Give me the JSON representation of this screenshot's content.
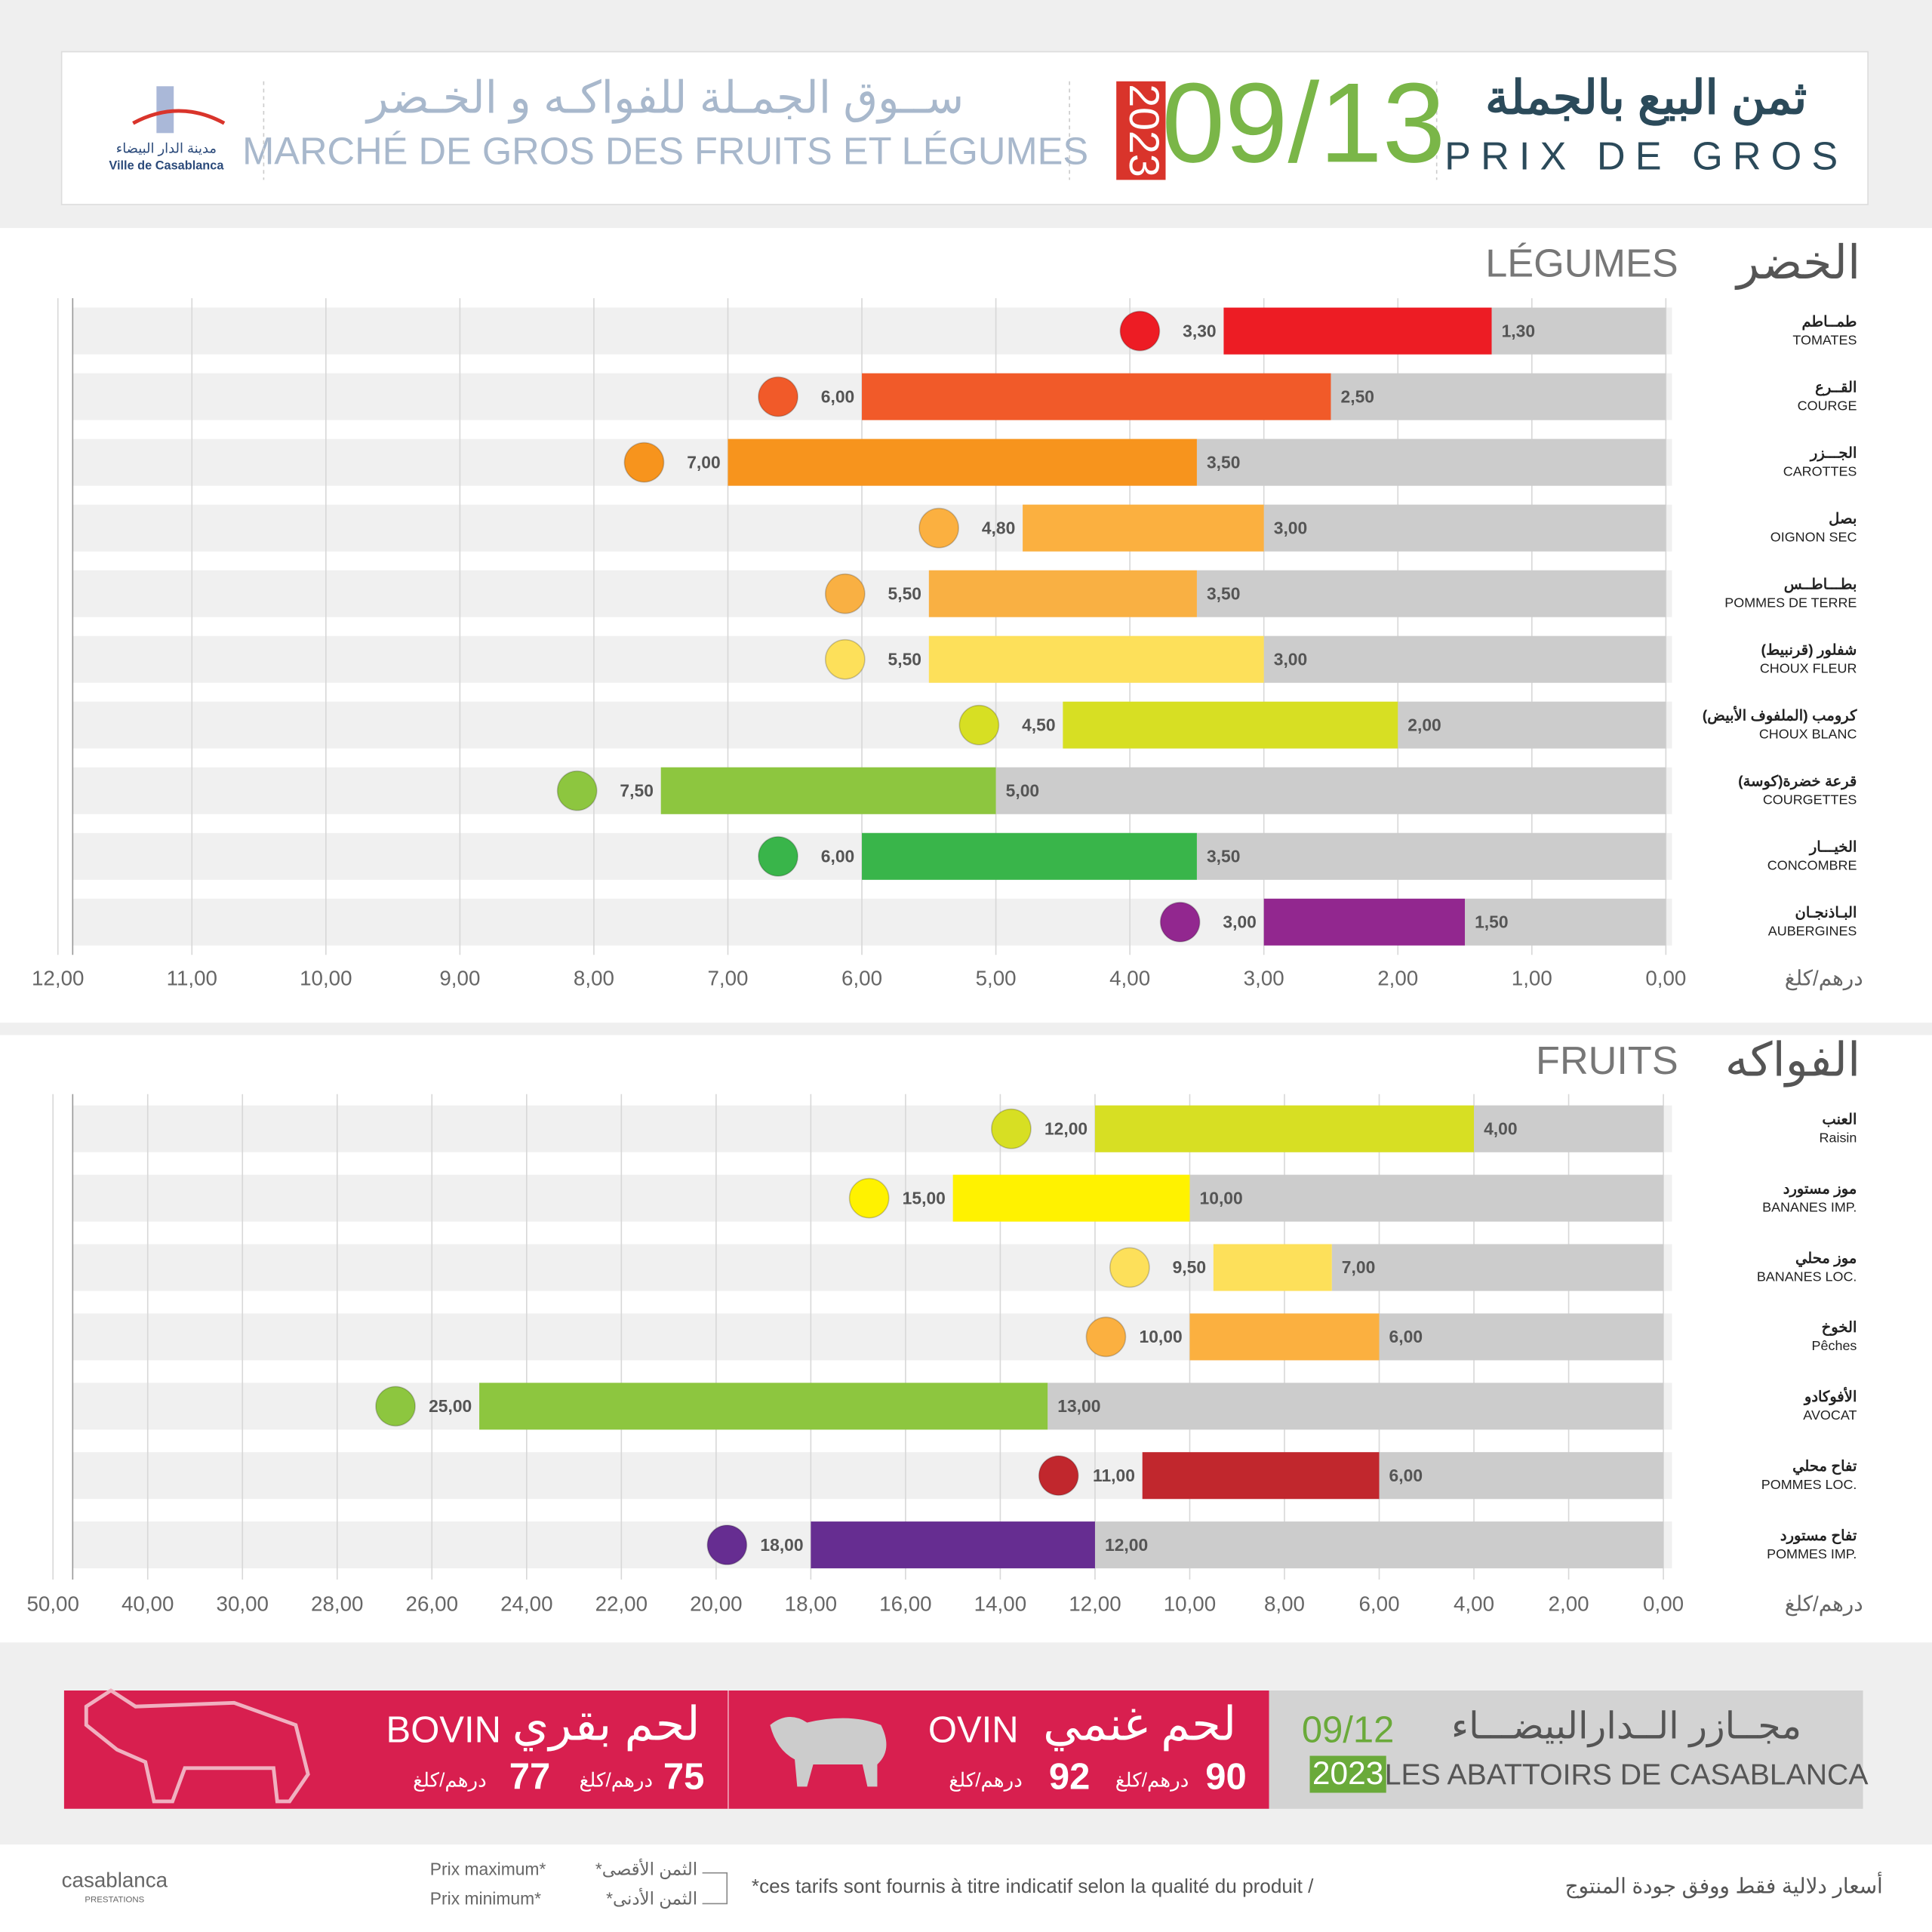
{
  "header": {
    "title_ar": "ثمن البيع بالجملة",
    "title_fr": "PRIX DE GROS",
    "date": "09/13",
    "year": "2023",
    "market_ar": "ســوق الجمـلة للفواكـه و الخـضر",
    "market_fr": "MARCHÉ DE GROS DES FRUITS ET LÉGUMES",
    "city_ar": "مدينة الدار البيضاء",
    "city_fr": "Ville de Casablanca"
  },
  "chart_data": [
    {
      "type": "range-bar",
      "title": "LÉGUMES",
      "title_ar": "الخضر",
      "unit": "درهم/كلغ",
      "xaxis_reversed": true,
      "categories": [
        "TOMATES",
        "COURGE",
        "CAROTTES",
        "OIGNON SEC",
        "POMMES DE TERRE",
        "CHOUX FLEUR",
        "CHOUX BLANC",
        "COURGETTES",
        "CONCOMBRE",
        "AUBERGINES"
      ],
      "categories_ar": [
        "طمــاطم",
        "القــرع",
        "الجـــزر",
        "بصل",
        "بطـــاطــس",
        "شفلور (قرنبيط)",
        "كرومب (الملفوف الأبيض)",
        "قرعة خضرة(كوسة)",
        "الخيـــار",
        "البـاذنجـان"
      ],
      "series": [
        {
          "values": [
            3.3,
            6,
            7,
            4.8,
            5.5,
            5.5,
            4.5,
            7.5,
            6,
            3
          ],
          "value_labels": [
            "3,30",
            "6,00",
            "7,00",
            "4,80",
            "5,50",
            "5,50",
            "4,50",
            "7,50",
            "6,00",
            "3,00"
          ],
          "colors": [
            "#ed1c24",
            "#f15a29",
            "#f7941d",
            "#fbb040",
            "#f9b043",
            "#fde05a",
            "#d7df23",
            "#8dc63f",
            "#39b54a",
            "#92278f"
          ]
        },
        {
          "values": [
            1.3,
            2.5,
            3.5,
            3,
            3.5,
            3,
            2,
            5,
            3.5,
            1.5
          ],
          "value_labels": [
            "1,30",
            "2,50",
            "3,50",
            "3,00",
            "3,50",
            "3,00",
            "2,00",
            "5,00",
            "3,50",
            "1,50"
          ],
          "color": "#cccccc"
        }
      ],
      "xlim": [
        0,
        12
      ],
      "xticks": [
        {
          "value": 0,
          "label": "0,00"
        },
        {
          "value": 1,
          "label": "1,00"
        },
        {
          "value": 2,
          "label": "2,00"
        },
        {
          "value": 3,
          "label": "3,00"
        },
        {
          "value": 4,
          "label": "4,00"
        },
        {
          "value": 5,
          "label": "5,00"
        },
        {
          "value": 6,
          "label": "6,00"
        },
        {
          "value": 7,
          "label": "7,00"
        },
        {
          "value": 8,
          "label": "8,00"
        },
        {
          "value": 9,
          "label": "9,00"
        },
        {
          "value": 10,
          "label": "10,00"
        },
        {
          "value": 11,
          "label": "11,00"
        },
        {
          "value": 12,
          "label": "12,00"
        }
      ],
      "grid": true
    },
    {
      "type": "range-bar",
      "title": "FRUITS",
      "title_ar": "الفواكه",
      "unit": "درهم/كلغ",
      "xaxis_reversed": true,
      "categories": [
        "Raisin",
        "BANANES IMP.",
        "BANANES LOC.",
        "Pêches",
        "AVOCAT",
        "POMMES LOC.",
        "POMMES IMP."
      ],
      "categories_ar": [
        "العنب",
        "موز مستورد",
        "موز محلي",
        "الخوخ",
        "الأفوكادو",
        "تفاح محلي",
        "تفاح مستورد"
      ],
      "series": [
        {
          "values": [
            12,
            15,
            9.5,
            10,
            25,
            11,
            18
          ],
          "value_labels": [
            "12,00",
            "15,00",
            "9,50",
            "10,00",
            "25,00",
            "11,00",
            "18,00"
          ],
          "colors": [
            "#d7df23",
            "#fff200",
            "#fde05a",
            "#fbb040",
            "#8dc63f",
            "#c1272d",
            "#662d91"
          ]
        },
        {
          "values": [
            4,
            10,
            7,
            6,
            13,
            6,
            12
          ],
          "value_labels": [
            "4,00",
            "10,00",
            "7,00",
            "6,00",
            "13,00",
            "6,00",
            "12,00"
          ],
          "color": "#cccccc"
        }
      ],
      "xlim": [
        0,
        50
      ],
      "xticks": [
        {
          "value": 0,
          "label": "0,00"
        },
        {
          "value": 2,
          "label": "2,00"
        },
        {
          "value": 4,
          "label": "4,00"
        },
        {
          "value": 6,
          "label": "6,00"
        },
        {
          "value": 8,
          "label": "8,00"
        },
        {
          "value": 10,
          "label": "10,00"
        },
        {
          "value": 12,
          "label": "12,00"
        },
        {
          "value": 14,
          "label": "14,00"
        },
        {
          "value": 16,
          "label": "16,00"
        },
        {
          "value": 18,
          "label": "18,00"
        },
        {
          "value": 20,
          "label": "20,00"
        },
        {
          "value": 22,
          "label": "22,00"
        },
        {
          "value": 24,
          "label": "24,00"
        },
        {
          "value": 26,
          "label": "26,00"
        },
        {
          "value": 28,
          "label": "28,00"
        },
        {
          "value": 30,
          "label": "30,00"
        },
        {
          "value": 40,
          "label": "40,00"
        },
        {
          "value": 50,
          "label": "50,00"
        }
      ],
      "grid": true
    }
  ],
  "meat": {
    "title_ar": "مجــازر الــدارالبيضـــاء",
    "title_fr": "LES ABATTOIRS DE CASABLANCA",
    "date": "09/12",
    "year": "2023",
    "unit": "درهم/كلغ",
    "items": [
      {
        "name_fr": "BOVIN",
        "name_ar": "لحم بقري",
        "min": "75",
        "max": "77"
      },
      {
        "name_fr": "OVIN",
        "name_ar": "لحم غنمي",
        "min": "90",
        "max": "92"
      }
    ]
  },
  "footer": {
    "max_fr": "Prix maximum*",
    "min_fr": "Prix minimum*",
    "max_ar": "*الثمن الأقصى",
    "min_ar": "*الثمن الأدنى",
    "note_fr": "*ces tarifs sont fournis à titre indicatif selon la qualité du produit  /",
    "note_ar": "أسعار دلالية فقط ووفق جودة المنتوج",
    "brand": "casablanca",
    "brand_sub": "PRESTATIONS"
  }
}
